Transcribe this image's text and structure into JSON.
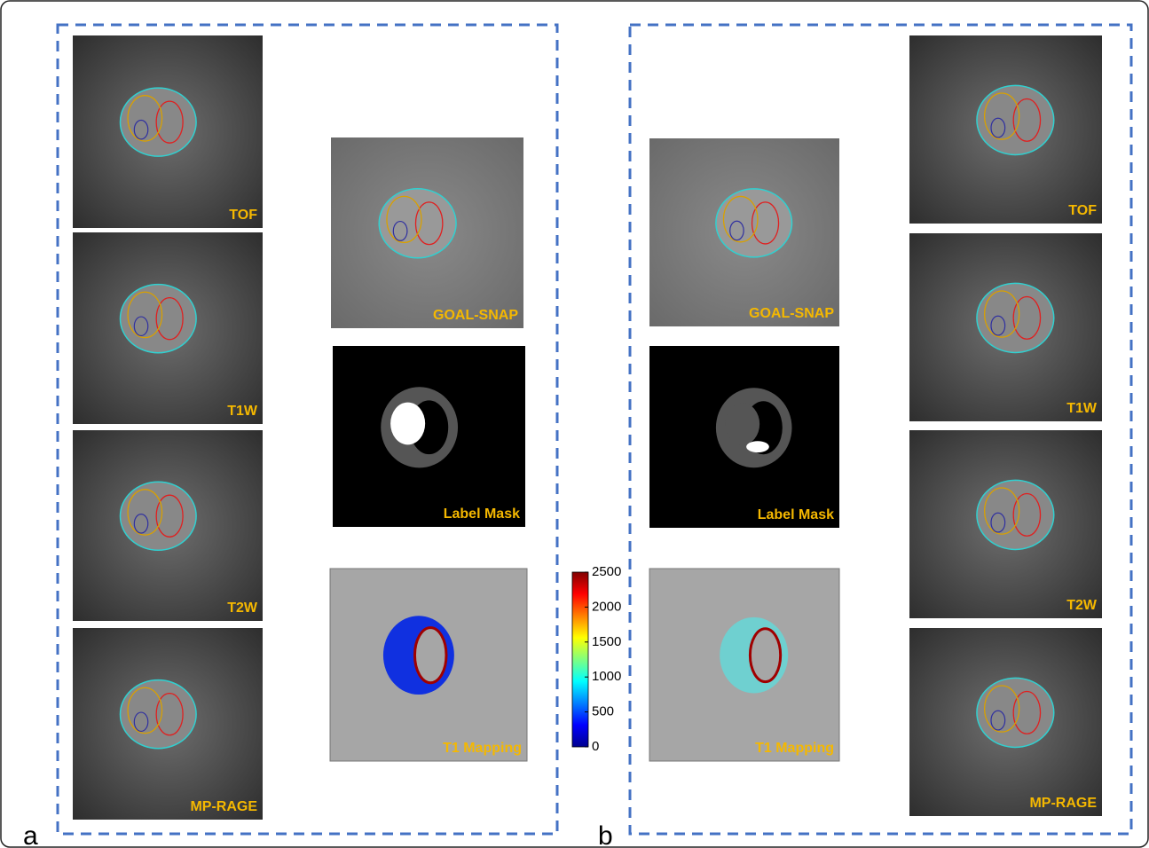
{
  "panels": [
    {
      "label": "a",
      "sequences": [
        "TOF",
        "T1W",
        "T2W",
        "MP-RAGE"
      ],
      "derived": [
        "GOAL-SNAP",
        "Label Mask",
        "T1 Mapping"
      ]
    },
    {
      "label": "b",
      "sequences": [
        "TOF",
        "T1W",
        "T2W",
        "MP-RAGE"
      ],
      "derived": [
        "GOAL-SNAP",
        "Label Mask",
        "T1 Mapping"
      ]
    }
  ],
  "colorbar": {
    "range": [
      0,
      2500
    ],
    "ticks": [
      0,
      500,
      1000,
      1500,
      2000,
      2500
    ]
  }
}
